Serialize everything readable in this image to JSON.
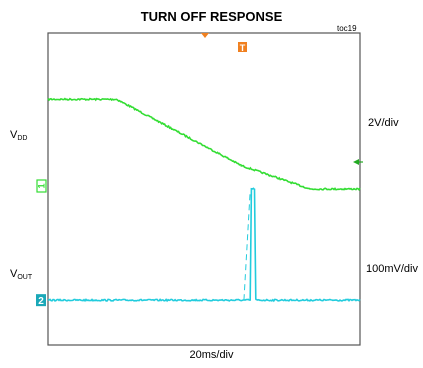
{
  "chart_data": {
    "type": "line",
    "title": "TURN OFF RESPONSE",
    "figure_id": "toc19",
    "xlabel": "20ms/div",
    "x_divisions": 10,
    "y_divisions": 8,
    "series": [
      {
        "name": "VDD",
        "label_main": "V",
        "label_sub": "DD",
        "scale": "2V/div",
        "channel_marker": "1",
        "color": "#33dd33",
        "x": [
          0,
          2.2,
          6.2,
          8.4,
          10
        ],
        "y": [
          6.3,
          6.3,
          4.6,
          4.0,
          4.0
        ]
      },
      {
        "name": "VOUT",
        "label_main": "V",
        "label_sub": "OUT",
        "scale": "100mV/div",
        "channel_marker": "2",
        "color": "#22ccdd",
        "x": [
          0,
          6.48,
          6.52,
          6.62,
          6.66,
          10
        ],
        "y": [
          1.15,
          1.15,
          4.0,
          4.0,
          1.15,
          1.15
        ]
      }
    ],
    "trigger_marker": "T"
  }
}
